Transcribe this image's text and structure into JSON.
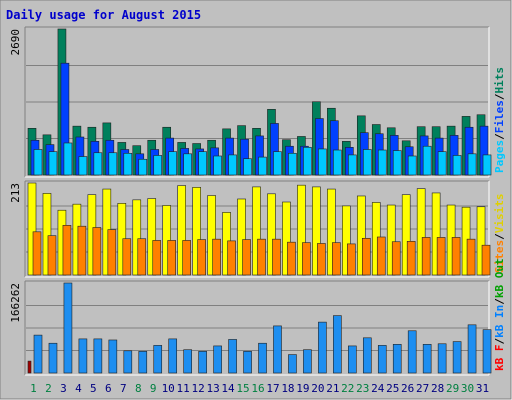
{
  "chart_data": [
    {
      "type": "bar",
      "title": "Daily usage for August 2015",
      "panel": "pages-files-hits",
      "y_top_label": "2690",
      "ylim": [
        0,
        2690
      ],
      "grid": true,
      "legend_placement": "right",
      "legend": [
        {
          "text": "Pages",
          "color": "#00c8ff"
        },
        {
          "text": "/",
          "color": "#000000"
        },
        {
          "text": "Files",
          "color": "#0040ff"
        },
        {
          "text": "/",
          "color": "#000000"
        },
        {
          "text": "Hits",
          "color": "#00805c"
        }
      ],
      "series": [
        {
          "name": "Hits",
          "color": "#00805c",
          "values": [
            860,
            740,
            2690,
            900,
            880,
            960,
            600,
            540,
            640,
            880,
            600,
            580,
            640,
            850,
            910,
            860,
            1210,
            650,
            710,
            1350,
            1230,
            620,
            1090,
            930,
            870,
            630,
            890,
            890,
            900,
            1080,
            1110
          ]
        },
        {
          "name": "Files",
          "color": "#0040ff",
          "values": [
            640,
            560,
            2060,
            700,
            620,
            640,
            470,
            390,
            470,
            680,
            490,
            480,
            500,
            680,
            660,
            720,
            950,
            530,
            530,
            1040,
            1000,
            510,
            780,
            760,
            730,
            520,
            720,
            680,
            730,
            880,
            900
          ]
        },
        {
          "name": "Pages",
          "color": "#00c8ff",
          "values": [
            470,
            430,
            590,
            340,
            410,
            410,
            400,
            290,
            360,
            430,
            390,
            430,
            350,
            370,
            300,
            330,
            430,
            400,
            510,
            480,
            460,
            370,
            470,
            460,
            450,
            350,
            530,
            430,
            360,
            390,
            370
          ]
        }
      ]
    },
    {
      "type": "bar",
      "panel": "visits-sites",
      "y_top_label": "213",
      "ylim": [
        0,
        213
      ],
      "grid": true,
      "legend_placement": "right",
      "legend": [
        {
          "text": "Sites",
          "color": "#ff8000"
        },
        {
          "text": "/",
          "color": "#000000"
        },
        {
          "text": "Visits",
          "color": "#e0d000"
        }
      ],
      "series": [
        {
          "name": "Visits",
          "color": "#ffff00",
          "values": [
            213,
            189,
            150,
            164,
            186,
            199,
            166,
            174,
            177,
            161,
            207,
            203,
            184,
            145,
            176,
            204,
            188,
            169,
            208,
            204,
            199,
            160,
            183,
            168,
            162,
            186,
            200,
            190,
            162,
            157,
            158
          ]
        },
        {
          "name": "Sites",
          "color": "#ff8000",
          "values": [
            100,
            91,
            115,
            113,
            110,
            105,
            84,
            84,
            80,
            80,
            80,
            82,
            83,
            79,
            82,
            83,
            83,
            76,
            75,
            73,
            75,
            72,
            85,
            88,
            77,
            78,
            87,
            87,
            87,
            83,
            69
          ]
        }
      ]
    },
    {
      "type": "bar",
      "panel": "kbytes",
      "y_top_label": "166262",
      "ylim": [
        0,
        166262
      ],
      "grid": true,
      "legend_placement": "right",
      "legend": [
        {
          "text": "kB F",
          "color": "#ff0000"
        },
        {
          "text": "/",
          "color": "#000000"
        },
        {
          "text": "kB In",
          "color": "#0080ff"
        },
        {
          "text": "/",
          "color": "#000000"
        },
        {
          "text": "kB Out",
          "color": "#00a000"
        }
      ],
      "series": [
        {
          "name": "kB In",
          "color": "#1d8ef0",
          "values": [
            70000,
            55000,
            166262,
            63000,
            63000,
            61000,
            41000,
            40000,
            51000,
            63000,
            43000,
            40000,
            50000,
            62000,
            40000,
            55000,
            87000,
            34000,
            43000,
            94000,
            106000,
            50000,
            65000,
            51000,
            53000,
            78000,
            53000,
            54000,
            58000,
            89000,
            80000
          ]
        },
        {
          "name": "kB F",
          "color": "#a00000",
          "values": [
            22000,
            0,
            0,
            0,
            0,
            0,
            0,
            0,
            0,
            0,
            0,
            0,
            0,
            0,
            0,
            0,
            0,
            0,
            0,
            0,
            0,
            0,
            0,
            0,
            0,
            0,
            0,
            0,
            0,
            0,
            0
          ]
        }
      ]
    }
  ],
  "x_axis": {
    "ticks": [
      {
        "label": "1",
        "color": "#008040"
      },
      {
        "label": "2",
        "color": "#008040"
      },
      {
        "label": "3",
        "color": "#000080"
      },
      {
        "label": "4",
        "color": "#000080"
      },
      {
        "label": "5",
        "color": "#000080"
      },
      {
        "label": "6",
        "color": "#000080"
      },
      {
        "label": "7",
        "color": "#000080"
      },
      {
        "label": "8",
        "color": "#008040"
      },
      {
        "label": "9",
        "color": "#008040"
      },
      {
        "label": "10",
        "color": "#000080"
      },
      {
        "label": "11",
        "color": "#000080"
      },
      {
        "label": "12",
        "color": "#000080"
      },
      {
        "label": "13",
        "color": "#000080"
      },
      {
        "label": "14",
        "color": "#000080"
      },
      {
        "label": "15",
        "color": "#008040"
      },
      {
        "label": "16",
        "color": "#008040"
      },
      {
        "label": "17",
        "color": "#000080"
      },
      {
        "label": "18",
        "color": "#000080"
      },
      {
        "label": "19",
        "color": "#000080"
      },
      {
        "label": "20",
        "color": "#000080"
      },
      {
        "label": "21",
        "color": "#000080"
      },
      {
        "label": "22",
        "color": "#008040"
      },
      {
        "label": "23",
        "color": "#008040"
      },
      {
        "label": "24",
        "color": "#000080"
      },
      {
        "label": "25",
        "color": "#000080"
      },
      {
        "label": "26",
        "color": "#000080"
      },
      {
        "label": "27",
        "color": "#000080"
      },
      {
        "label": "28",
        "color": "#000080"
      },
      {
        "label": "29",
        "color": "#008040"
      },
      {
        "label": "30",
        "color": "#008040"
      },
      {
        "label": "31",
        "color": "#000080"
      }
    ]
  },
  "colors": {
    "frame": "#c0c0c0",
    "plot_bg": "#c0c0c0",
    "grid": "#808080",
    "title": "#0000cc",
    "label": "#000000"
  }
}
